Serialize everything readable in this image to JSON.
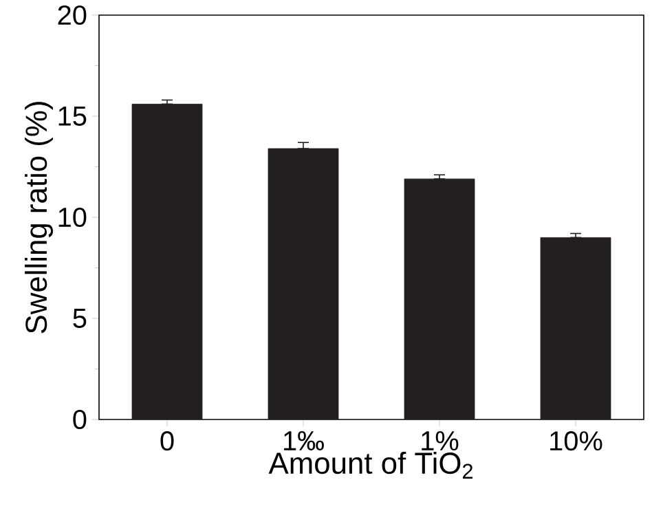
{
  "chart_data": {
    "type": "bar",
    "xlabel": "Amount of TiO$_{2}$",
    "ylabel": "Swelling ratio (%)",
    "categories": [
      "0",
      "1‰",
      "1%",
      "10%"
    ],
    "values": [
      15.6,
      13.4,
      11.9,
      9.0
    ],
    "errors": [
      [
        15.6,
        15.8
      ],
      [
        13.4,
        13.7
      ],
      [
        11.9,
        12.1
      ],
      [
        9.0,
        9.2
      ]
    ],
    "color": "#231f20",
    "ylim": [
      0,
      20
    ],
    "yticks": [
      0,
      5,
      10,
      15,
      20
    ]
  }
}
